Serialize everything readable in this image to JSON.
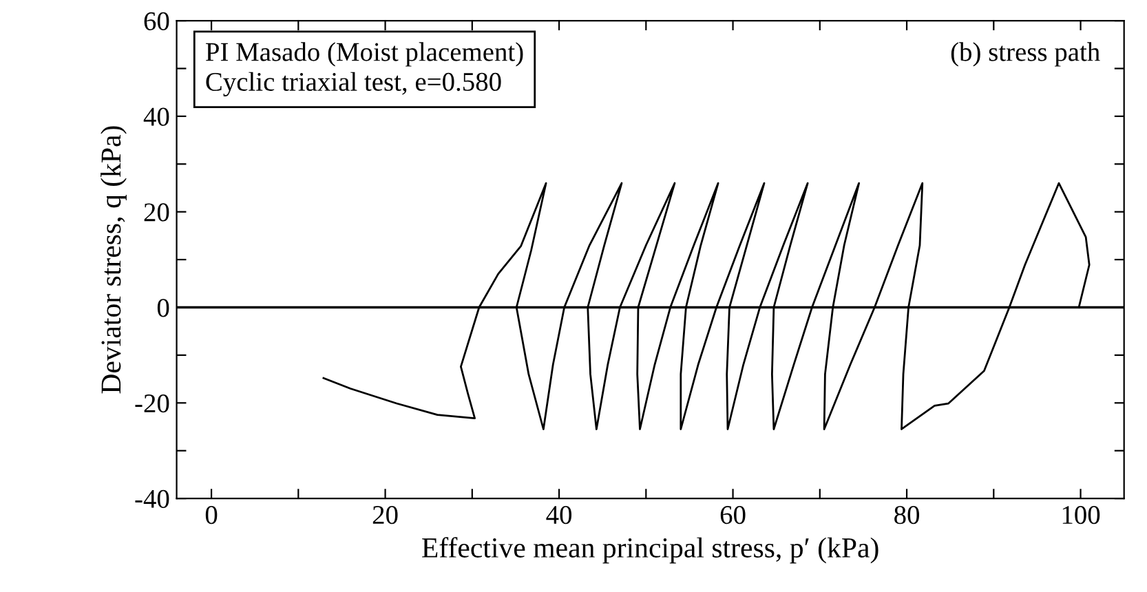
{
  "chart_data": {
    "type": "line",
    "xlabel": "Effective mean principal stress, p′ (kPa)",
    "ylabel": "Deviator stress, q (kPa)",
    "annotations": [
      "PI Masado (Moist placement)",
      "Cyclic triaxial test, e=0.580",
      "(b) stress path"
    ],
    "series": [
      {
        "color": "#000000",
        "x": [
          12.9,
          16,
          21.3,
          26,
          30.3,
          29.5,
          28.7,
          30.8,
          33.0,
          35.6,
          38.5,
          36.8,
          35.1,
          36.5,
          38.2,
          39.3,
          40.6,
          43.5,
          47.2,
          45.2,
          43.3,
          43.6,
          44.3,
          45.6,
          47.0,
          50.0,
          53.3,
          51.2,
          49.1,
          49.0,
          49.3,
          51.0,
          52.8,
          55.5,
          58.3,
          56.3,
          54.6,
          54.0,
          54.0,
          56.0,
          58.1,
          60.8,
          63.6,
          61.6,
          59.6,
          59.3,
          59.4,
          61.2,
          63.1,
          65.8,
          68.6,
          66.6,
          64.7,
          64.5,
          64.7,
          67.0,
          69.1,
          71.8,
          74.5,
          72.8,
          71.5,
          70.6,
          70.5,
          73.5,
          76.3,
          79.0,
          81.8,
          81.5,
          80.2,
          79.6,
          79.4,
          83.2,
          84.8,
          88.9,
          91.8,
          93.6,
          97.5,
          100.6,
          101,
          99.8
        ],
        "values": [
          -14.8,
          -17,
          -20.1,
          -22.5,
          -23.2,
          -18,
          -12.4,
          0,
          7,
          12.8,
          26,
          12,
          0,
          -14,
          -25.5,
          -12,
          0,
          13,
          26,
          13,
          0,
          -14,
          -25.5,
          -12,
          0,
          13,
          26,
          13,
          0,
          -14,
          -25.5,
          -12,
          0,
          13,
          26,
          13,
          0,
          -14,
          -25.5,
          -12,
          0,
          13,
          26,
          13,
          0,
          -14,
          -25.5,
          -12,
          0,
          13,
          26,
          13,
          0,
          -14,
          -25.5,
          -12,
          0,
          13,
          26,
          13,
          0,
          -14,
          -25.5,
          -12,
          0,
          13,
          26,
          13,
          0,
          -14,
          -25.5,
          -20.6,
          -20.1,
          -13.3,
          0,
          8.9,
          26,
          14.7,
          8.9,
          0
        ]
      }
    ],
    "xlim": [
      -4,
      105
    ],
    "xticks": [
      0,
      {
        "value": 10,
        "label": null
      },
      20,
      {
        "value": 30,
        "label": null
      },
      40,
      {
        "value": 50,
        "label": null
      },
      60,
      {
        "value": 70,
        "label": null
      },
      80,
      {
        "value": 90,
        "label": null
      },
      100
    ],
    "ylim": [
      -40,
      60
    ],
    "yticks": [
      -40,
      {
        "value": -30,
        "label": null
      },
      -20,
      {
        "value": -10,
        "label": null
      },
      0,
      {
        "value": 10,
        "label": null
      },
      20,
      {
        "value": 30,
        "label": null
      },
      40,
      {
        "value": 50,
        "label": null
      },
      60
    ],
    "ref_lines": [
      {
        "axis": "y",
        "value": 0,
        "color": "#000000"
      }
    ],
    "marker": "none",
    "line_style": "solid",
    "grid": false,
    "legend": false
  }
}
